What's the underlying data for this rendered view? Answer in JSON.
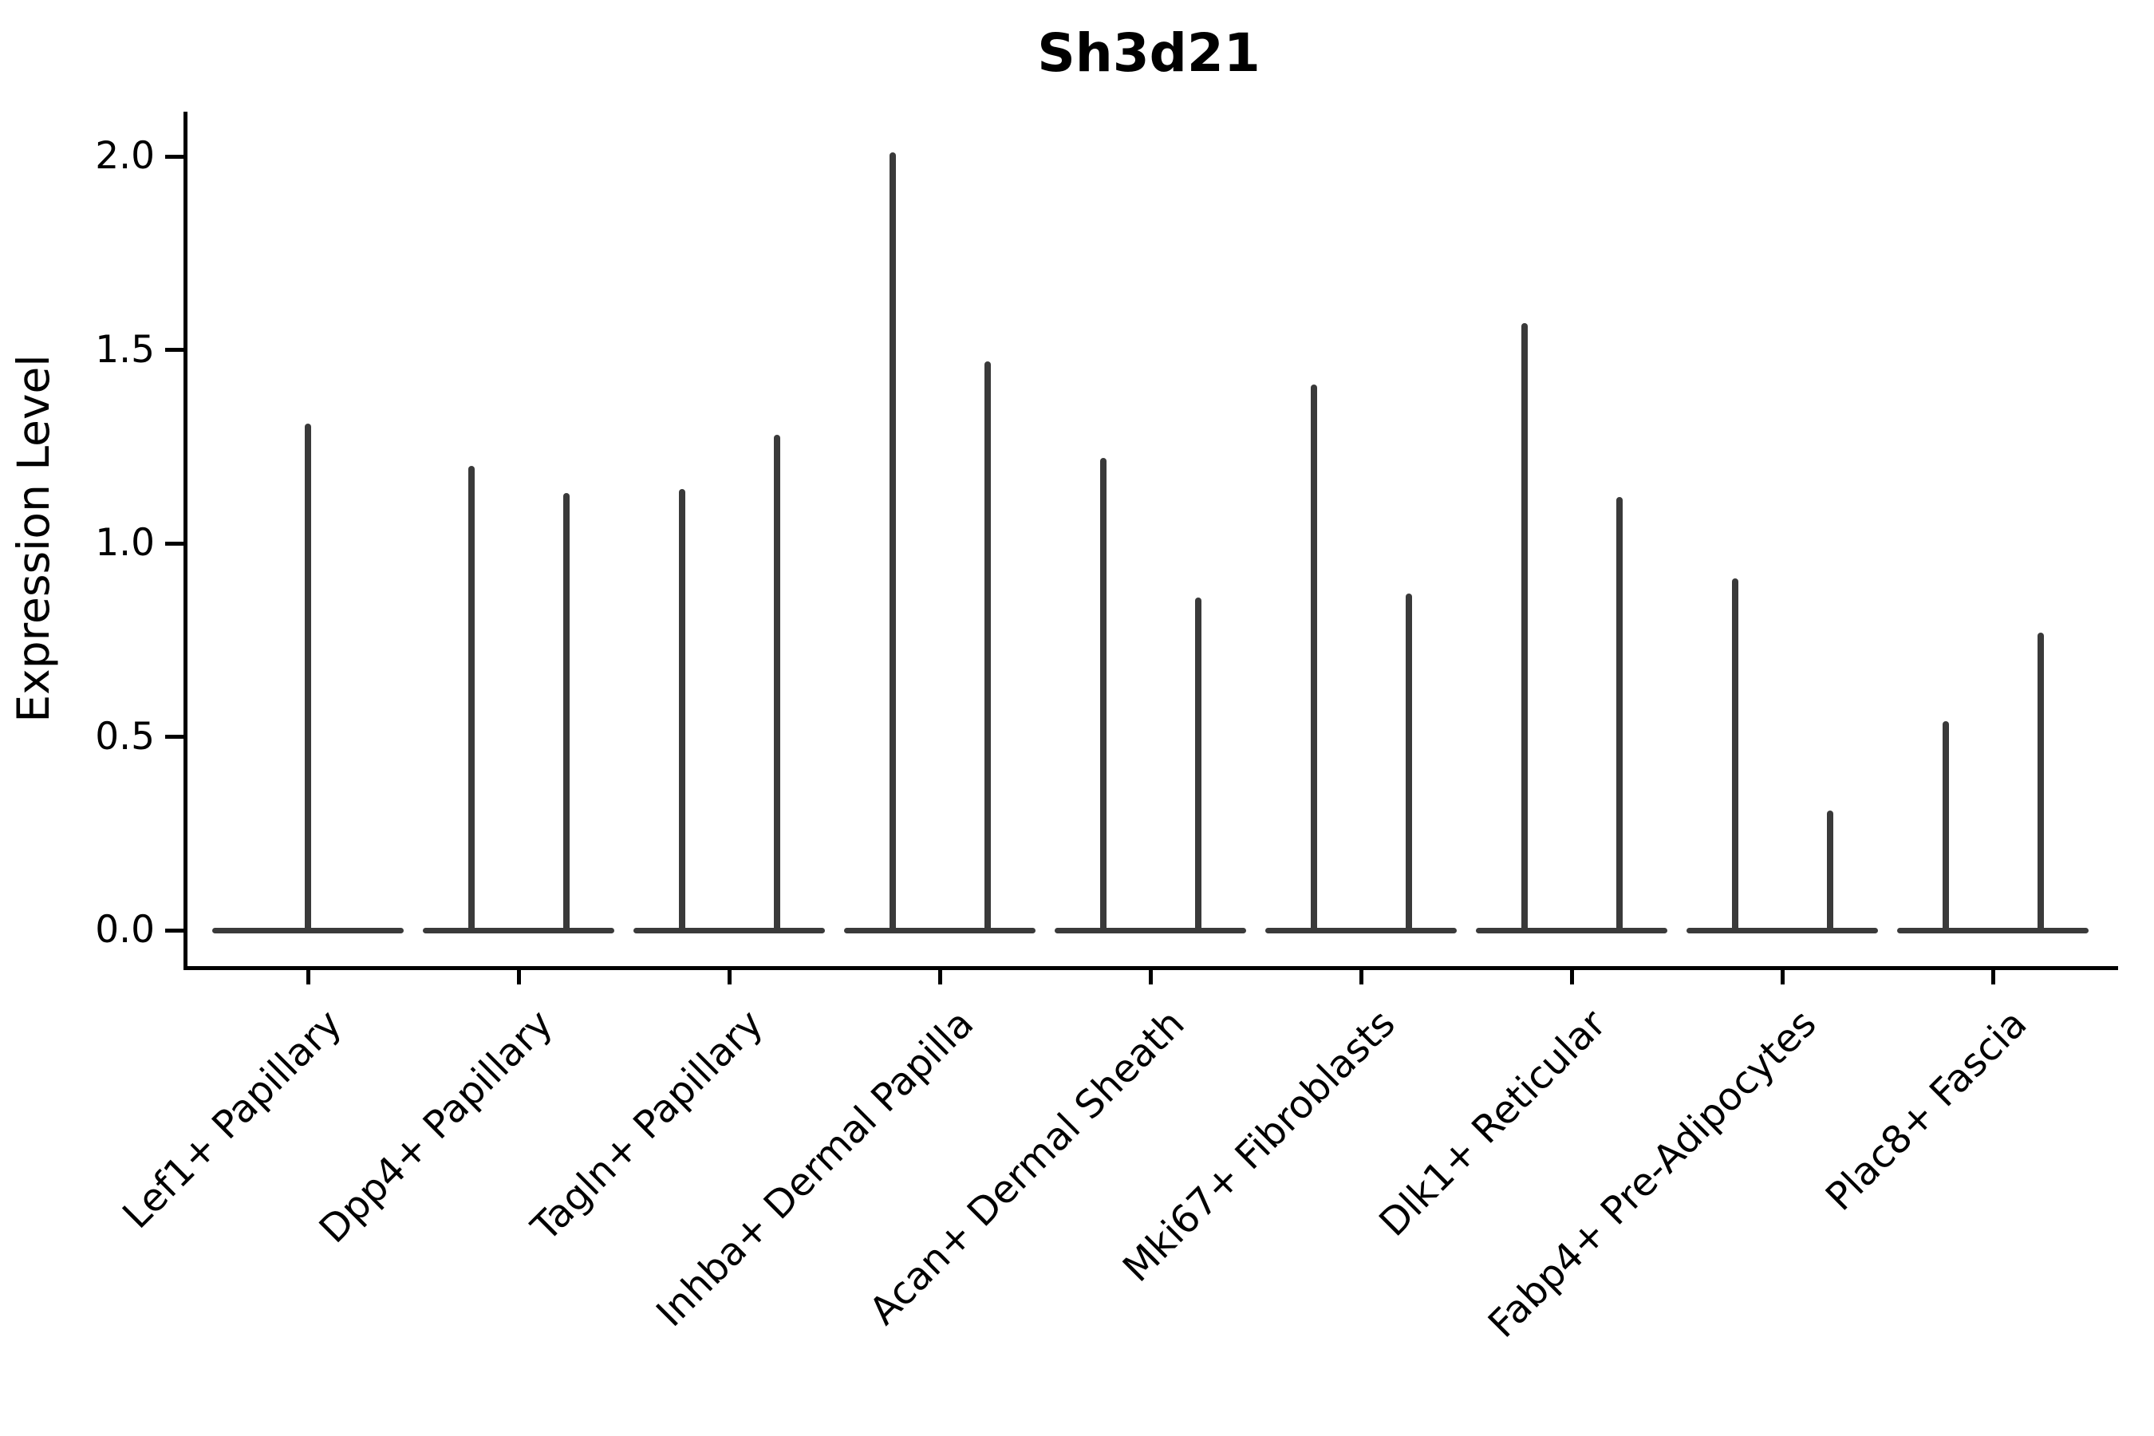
{
  "title": "Sh3d21",
  "y_axis": {
    "label": "Expression Level",
    "tick_labels": [
      "0.0",
      "0.5",
      "1.0",
      "1.5",
      "2.0"
    ]
  },
  "chart_data": {
    "type": "violin",
    "title": "Sh3d21",
    "ylabel": "Expression Level",
    "xlabel": "",
    "ylim": [
      0,
      2.2
    ],
    "yticks": [
      0.0,
      0.5,
      1.0,
      1.5,
      2.0
    ],
    "ytick_labels": [
      "0.0",
      "0.5",
      "1.0",
      "1.5",
      "2.0"
    ],
    "grid": false,
    "legend": "none",
    "baseline_value": 0.0,
    "colors": {
      "violin": "#3a3a3a",
      "axis": "#000000",
      "text": "#000000",
      "background": "#ffffff"
    },
    "categories": [
      "Lef1+ Papillary",
      "Dpp4+ Papillary",
      "Tagln+ Papillary",
      "Inhba+ Dermal Papilla",
      "Acan+ Dermal Sheath",
      "Mki67+ Fibroblasts",
      "Dlk1+ Reticular",
      "Fabp4+ Pre-Adipocytes",
      "Plac8+ Fascia"
    ],
    "violins": [
      {
        "category": "Lef1+ Papillary",
        "spike_max_values": [
          1.31
        ]
      },
      {
        "category": "Dpp4+ Papillary",
        "spike_max_values": [
          1.2,
          1.13
        ]
      },
      {
        "category": "Tagln+ Papillary",
        "spike_max_values": [
          1.14,
          1.28
        ]
      },
      {
        "category": "Inhba+ Dermal Papilla",
        "spike_max_values": [
          2.01,
          1.47
        ]
      },
      {
        "category": "Acan+ Dermal Sheath",
        "spike_max_values": [
          1.22,
          0.86
        ]
      },
      {
        "category": "Mki67+ Fibroblasts",
        "spike_max_values": [
          1.41,
          0.87
        ]
      },
      {
        "category": "Dlk1+ Reticular",
        "spike_max_values": [
          1.57,
          1.12
        ]
      },
      {
        "category": "Fabp4+ Pre-Adipocytes",
        "spike_max_values": [
          0.91,
          0.31
        ]
      },
      {
        "category": "Plac8+ Fascia",
        "spike_max_values": [
          0.54,
          0.77
        ]
      }
    ]
  }
}
